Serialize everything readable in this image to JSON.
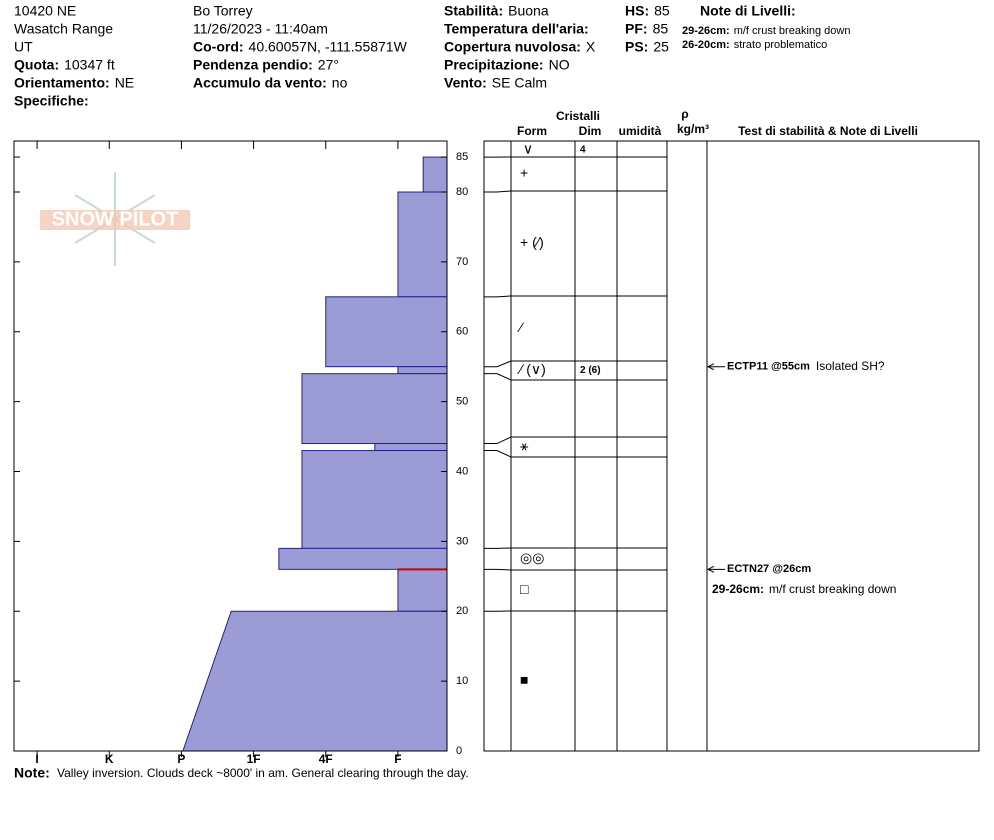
{
  "header": {
    "col1": [
      {
        "value": "10420 NE"
      },
      {
        "value": "Wasatch Range"
      },
      {
        "value": "UT"
      },
      {
        "label": "Quota:",
        "value": "10347 ft"
      },
      {
        "label": "Orientamento:",
        "value": "NE"
      },
      {
        "label": "Specifiche:"
      }
    ],
    "col2": [
      {
        "value": "Bo Torrey"
      },
      {
        "value": "11/26/2023 - 11:40am"
      },
      {
        "label": "Co-ord:",
        "value": "40.60057N, -111.55871W"
      },
      {
        "label": "Pendenza pendio:",
        "value": "27°"
      },
      {
        "label": "Accumulo da vento:",
        "value": "no"
      }
    ],
    "col3": [
      {
        "label": "Stabilità:",
        "value": "Buona"
      },
      {
        "label": "Temperatura dell'aria:"
      },
      {
        "label": "Copertura nuvolosa:",
        "value": "X"
      },
      {
        "label": "Precipitazione:",
        "value": "NO"
      },
      {
        "label": "Vento:",
        "value": "SE Calm"
      }
    ],
    "col4": [
      {
        "label": "HS:",
        "value": "85"
      },
      {
        "label": "PF:",
        "value": "85"
      },
      {
        "label": "PS:",
        "value": "25"
      }
    ],
    "notes_title": "Note di Livelli:",
    "notes": [
      {
        "label": "29-26cm:",
        "text": "m/f crust breaking down"
      },
      {
        "label": "26-20cm:",
        "text": "strato problematico"
      }
    ]
  },
  "logo": "SNOW PILOT",
  "columns": {
    "crystals": "Cristalli",
    "form": "Form",
    "dim": "Dim",
    "moisture": "umidità",
    "rho": "ρ",
    "density_unit": "kg/m³",
    "tests": "Test di stabilità & Note di Livelli"
  },
  "profile": {
    "depth_lim": [
      0,
      87.3
    ],
    "depth_ticks": [
      0,
      10,
      20,
      30,
      40,
      50,
      60,
      70,
      80,
      85
    ],
    "hardness_lim": [
      6.32,
      0.32
    ],
    "hardness_ticks": [
      {
        "value": 6,
        "label": "I"
      },
      {
        "value": 5,
        "label": "K"
      },
      {
        "value": 4,
        "label": "P"
      },
      {
        "value": 3,
        "label": "1F"
      },
      {
        "value": 2,
        "label": "4F"
      },
      {
        "value": 1,
        "label": "F"
      }
    ],
    "surface": {
      "form": "∨",
      "dim": "4"
    },
    "layers": [
      {
        "top": 85,
        "bottom": 80,
        "hardness": 0.65,
        "form": "+"
      },
      {
        "top": 80,
        "bottom": 65,
        "hardness": 1,
        "form": "+ (⁄)"
      },
      {
        "top": 65,
        "bottom": 55,
        "hardness": 2,
        "form": "⁄"
      },
      {
        "top": 55,
        "bottom": 54,
        "hardness": 1,
        "form": "⁄ (∨)",
        "dim": "2 (6)"
      },
      {
        "top": 54,
        "bottom": 44,
        "hardness": 2.33
      },
      {
        "top": 44,
        "bottom": 43,
        "hardness": 1.32,
        "form": "⚹"
      },
      {
        "top": 43,
        "bottom": 29,
        "hardness": 2.33
      },
      {
        "top": 29,
        "bottom": 26,
        "hardness": 2.65,
        "form": "◎◎"
      },
      {
        "top": 26,
        "bottom": 20,
        "hardness": 1,
        "form": "□"
      },
      {
        "top": 20,
        "bottom": 0,
        "hardness": 3.31,
        "hardness_bottom": 3.98,
        "form": "■"
      }
    ],
    "concern_depth": 26,
    "bar_color": "#9b9bd6",
    "tests": [
      {
        "depth": 55,
        "label": "ECTP11 @55cm",
        "comment": "Isolated SH?"
      },
      {
        "depth": 26,
        "label": "ECTN27 @26cm"
      }
    ]
  },
  "footer": {
    "label": "Note:",
    "text": "Valley inversion. Clouds deck ~8000' in am. General clearing through the day."
  }
}
